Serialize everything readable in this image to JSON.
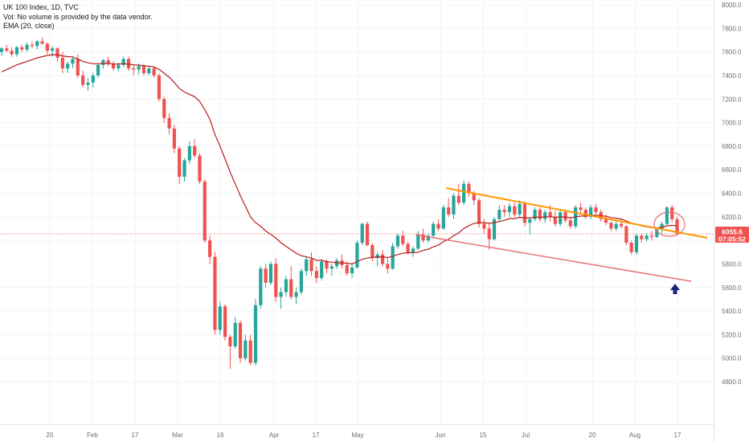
{
  "legend": {
    "symbol_line": "UK 100 Index, 1D, TVC",
    "volume_line": "Vol: No volume is provided by the data vendor.",
    "ema_line": "EMA (20, close)"
  },
  "price_tag": {
    "price": "6055.6",
    "countdown": "07:05:52"
  },
  "colors": {
    "up": "#26a69a",
    "down": "#ef5350",
    "ema": "#b71c1c",
    "upper_trendline": "#ff9800",
    "lower_trendline": "#e57373",
    "circle": "#e57373",
    "arrow": "#1a237e",
    "price_tag": "#ef5350"
  },
  "chart_data": {
    "type": "candlestick",
    "title": "UK 100 Index, 1D, TVC",
    "ylim": [
      4600,
      8100
    ],
    "y_ticks": [
      "8000.0",
      "7800.0",
      "7600.0",
      "7400.0",
      "7200.0",
      "7000.0",
      "6800.0",
      "6600.0",
      "6400.0",
      "6200.0",
      "6000.0",
      "5800.0",
      "5600.0",
      "5400.0",
      "5200.0",
      "5000.0",
      "4800.0"
    ],
    "x_ticks": [
      "20",
      "Feb",
      "17",
      "Mar",
      "16",
      "Apr",
      "17",
      "May",
      "Jun",
      "15",
      "Jul",
      "20",
      "Aug",
      "17"
    ],
    "current_price": 6055.6,
    "candles": [
      [
        7600,
        7640,
        7570,
        7630
      ],
      [
        7630,
        7660,
        7600,
        7610
      ],
      [
        7610,
        7640,
        7560,
        7580
      ],
      [
        7580,
        7650,
        7560,
        7640
      ],
      [
        7640,
        7660,
        7600,
        7620
      ],
      [
        7620,
        7680,
        7600,
        7660
      ],
      [
        7660,
        7690,
        7630,
        7650
      ],
      [
        7650,
        7700,
        7620,
        7690
      ],
      [
        7690,
        7720,
        7660,
        7670
      ],
      [
        7670,
        7680,
        7580,
        7610
      ],
      [
        7610,
        7650,
        7560,
        7630
      ],
      [
        7630,
        7640,
        7520,
        7550
      ],
      [
        7550,
        7600,
        7420,
        7460
      ],
      [
        7460,
        7520,
        7420,
        7500
      ],
      [
        7500,
        7560,
        7460,
        7540
      ],
      [
        7540,
        7580,
        7380,
        7400
      ],
      [
        7400,
        7440,
        7300,
        7320
      ],
      [
        7320,
        7380,
        7270,
        7340
      ],
      [
        7340,
        7420,
        7300,
        7400
      ],
      [
        7400,
        7500,
        7380,
        7490
      ],
      [
        7490,
        7540,
        7460,
        7530
      ],
      [
        7530,
        7560,
        7480,
        7500
      ],
      [
        7500,
        7520,
        7440,
        7460
      ],
      [
        7460,
        7510,
        7430,
        7490
      ],
      [
        7490,
        7560,
        7470,
        7540
      ],
      [
        7540,
        7560,
        7440,
        7460
      ],
      [
        7460,
        7490,
        7400,
        7450
      ],
      [
        7450,
        7500,
        7410,
        7480
      ],
      [
        7480,
        7500,
        7400,
        7420
      ],
      [
        7420,
        7480,
        7400,
        7460
      ],
      [
        7460,
        7480,
        7380,
        7400
      ],
      [
        7400,
        7420,
        7180,
        7200
      ],
      [
        7200,
        7220,
        7000,
        7040
      ],
      [
        7040,
        7080,
        6900,
        6950
      ],
      [
        6950,
        6980,
        6740,
        6780
      ],
      [
        6780,
        6800,
        6480,
        6540
      ],
      [
        6540,
        6700,
        6500,
        6680
      ],
      [
        6680,
        6840,
        6650,
        6800
      ],
      [
        6800,
        6860,
        6700,
        6720
      ],
      [
        6720,
        6740,
        6480,
        6500
      ],
      [
        6500,
        6520,
        5980,
        6000
      ],
      [
        6000,
        6040,
        5800,
        5860
      ],
      [
        5860,
        5900,
        5200,
        5240
      ],
      [
        5240,
        5480,
        5200,
        5440
      ],
      [
        5440,
        5460,
        5150,
        5180
      ],
      [
        5180,
        5200,
        4910,
        5100
      ],
      [
        5100,
        5350,
        5080,
        5300
      ],
      [
        5300,
        5320,
        4960,
        5000
      ],
      [
        5000,
        5200,
        4980,
        5150
      ],
      [
        5150,
        5200,
        4940,
        4960
      ],
      [
        4960,
        5500,
        4940,
        5450
      ],
      [
        5450,
        5780,
        5420,
        5760
      ],
      [
        5760,
        5800,
        5600,
        5640
      ],
      [
        5640,
        5820,
        5620,
        5800
      ],
      [
        5800,
        5850,
        5480,
        5520
      ],
      [
        5520,
        5600,
        5420,
        5560
      ],
      [
        5560,
        5700,
        5520,
        5670
      ],
      [
        5670,
        5780,
        5500,
        5520
      ],
      [
        5520,
        5600,
        5460,
        5560
      ],
      [
        5560,
        5760,
        5540,
        5740
      ],
      [
        5740,
        5860,
        5700,
        5840
      ],
      [
        5840,
        5900,
        5700,
        5740
      ],
      [
        5740,
        5780,
        5640,
        5680
      ],
      [
        5680,
        5840,
        5660,
        5820
      ],
      [
        5820,
        5840,
        5720,
        5760
      ],
      [
        5760,
        5800,
        5700,
        5780
      ],
      [
        5780,
        5850,
        5760,
        5830
      ],
      [
        5830,
        5880,
        5760,
        5790
      ],
      [
        5790,
        5820,
        5700,
        5720
      ],
      [
        5720,
        5800,
        5680,
        5770
      ],
      [
        5770,
        6000,
        5760,
        5980
      ],
      [
        5980,
        6150,
        5960,
        6140
      ],
      [
        6140,
        6160,
        5950,
        5960
      ],
      [
        5960,
        5980,
        5820,
        5850
      ],
      [
        5850,
        5900,
        5780,
        5880
      ],
      [
        5880,
        5920,
        5780,
        5800
      ],
      [
        5800,
        5850,
        5720,
        5760
      ],
      [
        5760,
        5980,
        5750,
        5950
      ],
      [
        5950,
        6060,
        5930,
        6040
      ],
      [
        6040,
        6080,
        5950,
        5970
      ],
      [
        5970,
        5990,
        5880,
        5900
      ],
      [
        5900,
        5950,
        5860,
        5930
      ],
      [
        5930,
        6080,
        5920,
        6050
      ],
      [
        6050,
        6100,
        5980,
        6000
      ],
      [
        6000,
        6060,
        5980,
        6040
      ],
      [
        6040,
        6160,
        6020,
        6140
      ],
      [
        6140,
        6180,
        6080,
        6100
      ],
      [
        6100,
        6300,
        6090,
        6280
      ],
      [
        6280,
        6360,
        6200,
        6220
      ],
      [
        6220,
        6400,
        6180,
        6380
      ],
      [
        6380,
        6480,
        6300,
        6320
      ],
      [
        6320,
        6510,
        6300,
        6480
      ],
      [
        6480,
        6500,
        6370,
        6400
      ],
      [
        6400,
        6420,
        6300,
        6340
      ],
      [
        6340,
        6360,
        6110,
        6140
      ],
      [
        6140,
        6180,
        6060,
        6100
      ],
      [
        6100,
        6150,
        5920,
        6010
      ],
      [
        6010,
        6200,
        6000,
        6180
      ],
      [
        6180,
        6300,
        6160,
        6260
      ],
      [
        6260,
        6300,
        6200,
        6240
      ],
      [
        6240,
        6320,
        6200,
        6290
      ],
      [
        6290,
        6320,
        6200,
        6220
      ],
      [
        6220,
        6340,
        6200,
        6310
      ],
      [
        6310,
        6330,
        6120,
        6150
      ],
      [
        6150,
        6200,
        6050,
        6180
      ],
      [
        6180,
        6280,
        6160,
        6260
      ],
      [
        6260,
        6280,
        6160,
        6180
      ],
      [
        6180,
        6260,
        6150,
        6240
      ],
      [
        6240,
        6300,
        6160,
        6200
      ],
      [
        6200,
        6250,
        6120,
        6140
      ],
      [
        6140,
        6260,
        6120,
        6240
      ],
      [
        6240,
        6260,
        6150,
        6170
      ],
      [
        6170,
        6200,
        6100,
        6120
      ],
      [
        6120,
        6300,
        6100,
        6280
      ],
      [
        6280,
        6320,
        6230,
        6260
      ],
      [
        6260,
        6280,
        6180,
        6200
      ],
      [
        6200,
        6300,
        6180,
        6280
      ],
      [
        6280,
        6310,
        6220,
        6240
      ],
      [
        6240,
        6260,
        6160,
        6180
      ],
      [
        6180,
        6220,
        6130,
        6150
      ],
      [
        6150,
        6160,
        6080,
        6100
      ],
      [
        6100,
        6160,
        6080,
        6140
      ],
      [
        6140,
        6180,
        6100,
        6120
      ],
      [
        6120,
        6130,
        5960,
        5980
      ],
      [
        5980,
        6000,
        5880,
        5900
      ],
      [
        5900,
        6060,
        5880,
        6040
      ],
      [
        6040,
        6060,
        5980,
        6010
      ],
      [
        6010,
        6060,
        5990,
        6040
      ],
      [
        6040,
        6080,
        6000,
        6030
      ],
      [
        6030,
        6100,
        6020,
        6090
      ],
      [
        6090,
        6160,
        6060,
        6140
      ],
      [
        6140,
        6290,
        6120,
        6280
      ],
      [
        6280,
        6300,
        6150,
        6180
      ],
      [
        6180,
        6200,
        6040,
        6056
      ]
    ],
    "ema": [
      7430,
      7450,
      7470,
      7490,
      7505,
      7520,
      7535,
      7550,
      7560,
      7570,
      7576,
      7576,
      7566,
      7560,
      7558,
      7540,
      7520,
      7508,
      7500,
      7500,
      7502,
      7502,
      7498,
      7497,
      7500,
      7496,
      7490,
      7489,
      7482,
      7480,
      7472,
      7452,
      7420,
      7385,
      7340,
      7290,
      7260,
      7240,
      7220,
      7180,
      7110,
      7030,
      6900,
      6800,
      6690,
      6580,
      6480,
      6380,
      6290,
      6200,
      6150,
      6120,
      6080,
      6050,
      6020,
      5980,
      5950,
      5920,
      5890,
      5870,
      5860,
      5850,
      5830,
      5830,
      5820,
      5815,
      5810,
      5810,
      5805,
      5800,
      5820,
      5840,
      5850,
      5855,
      5860,
      5860,
      5855,
      5865,
      5880,
      5890,
      5895,
      5895,
      5900,
      5915,
      5925,
      5945,
      5960,
      5990,
      6010,
      6040,
      6065,
      6100,
      6125,
      6145,
      6150,
      6150,
      6145,
      6150,
      6160,
      6170,
      6185,
      6185,
      6195,
      6192,
      6190,
      6198,
      6196,
      6200,
      6200,
      6196,
      6200,
      6198,
      6192,
      6200,
      6206,
      6206,
      6212,
      6214,
      6210,
      6204,
      6194,
      6188,
      6182,
      6164,
      6146,
      6136,
      6124,
      6116,
      6108,
      6106,
      6110,
      6124,
      6128,
      6122
    ]
  }
}
